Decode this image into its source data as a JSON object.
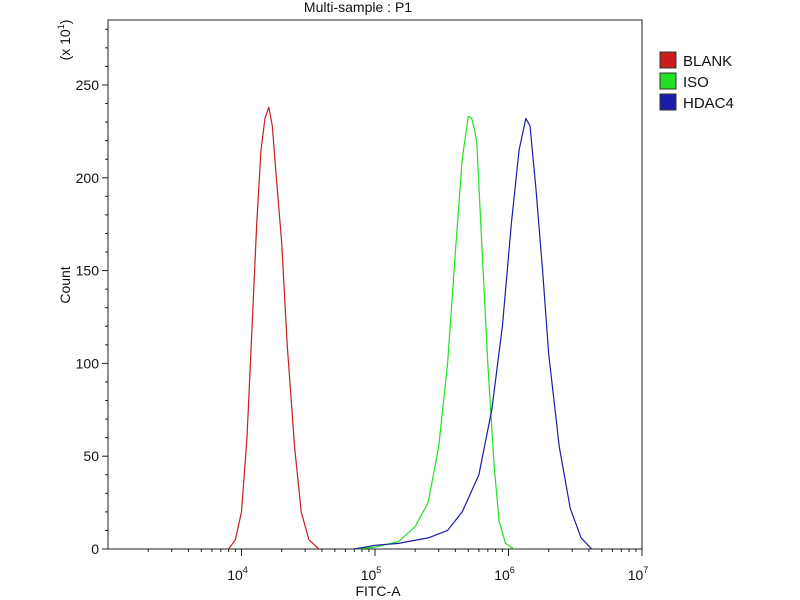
{
  "chart_data": {
    "type": "line",
    "title": "Multi-sample : P1",
    "xlabel": "FITC-A",
    "ylabel": "Count",
    "y_multiplier": {
      "prefix": "(x 10",
      "exp": "1",
      "suffix": ")"
    },
    "x_scale": "log",
    "xlim": [
      1000,
      10000000
    ],
    "ylim": [
      0,
      285
    ],
    "x_ticks": [
      {
        "value": 10000,
        "base": "10",
        "exp": "4"
      },
      {
        "value": 100000,
        "base": "10",
        "exp": "5"
      },
      {
        "value": 1000000,
        "base": "10",
        "exp": "6"
      },
      {
        "value": 10000000,
        "base": "10",
        "exp": "7"
      }
    ],
    "y_ticks": [
      0,
      50,
      100,
      150,
      200,
      250
    ],
    "legend_position": "right, outside top",
    "series": [
      {
        "name": "BLANK",
        "color": "#c81e1e",
        "points": [
          [
            8000,
            0
          ],
          [
            9000,
            5
          ],
          [
            10000,
            20
          ],
          [
            11000,
            60
          ],
          [
            12000,
            120
          ],
          [
            13000,
            175
          ],
          [
            14000,
            215
          ],
          [
            15000,
            232
          ],
          [
            16000,
            238
          ],
          [
            17000,
            228
          ],
          [
            18000,
            205
          ],
          [
            20000,
            165
          ],
          [
            22000,
            110
          ],
          [
            25000,
            55
          ],
          [
            28000,
            20
          ],
          [
            32000,
            5
          ],
          [
            38000,
            0
          ]
        ]
      },
      {
        "name": "ISO",
        "color": "#22e022",
        "points": [
          [
            70000,
            0
          ],
          [
            100000,
            1
          ],
          [
            150000,
            4
          ],
          [
            200000,
            12
          ],
          [
            250000,
            25
          ],
          [
            300000,
            55
          ],
          [
            350000,
            100
          ],
          [
            400000,
            160
          ],
          [
            450000,
            210
          ],
          [
            500000,
            233
          ],
          [
            530000,
            232
          ],
          [
            560000,
            225
          ],
          [
            580000,
            218
          ],
          [
            620000,
            175
          ],
          [
            700000,
            100
          ],
          [
            780000,
            45
          ],
          [
            850000,
            15
          ],
          [
            950000,
            3
          ],
          [
            1100000,
            0
          ]
        ]
      },
      {
        "name": "HDAC4",
        "color": "#1c1ca8",
        "points": [
          [
            70000,
            0
          ],
          [
            100000,
            2
          ],
          [
            150000,
            3
          ],
          [
            250000,
            6
          ],
          [
            350000,
            10
          ],
          [
            450000,
            20
          ],
          [
            600000,
            40
          ],
          [
            750000,
            75
          ],
          [
            900000,
            120
          ],
          [
            1050000,
            175
          ],
          [
            1200000,
            215
          ],
          [
            1350000,
            232
          ],
          [
            1450000,
            228
          ],
          [
            1600000,
            195
          ],
          [
            1800000,
            150
          ],
          [
            2000000,
            105
          ],
          [
            2400000,
            55
          ],
          [
            2900000,
            22
          ],
          [
            3500000,
            6
          ],
          [
            4200000,
            0
          ]
        ]
      }
    ]
  }
}
